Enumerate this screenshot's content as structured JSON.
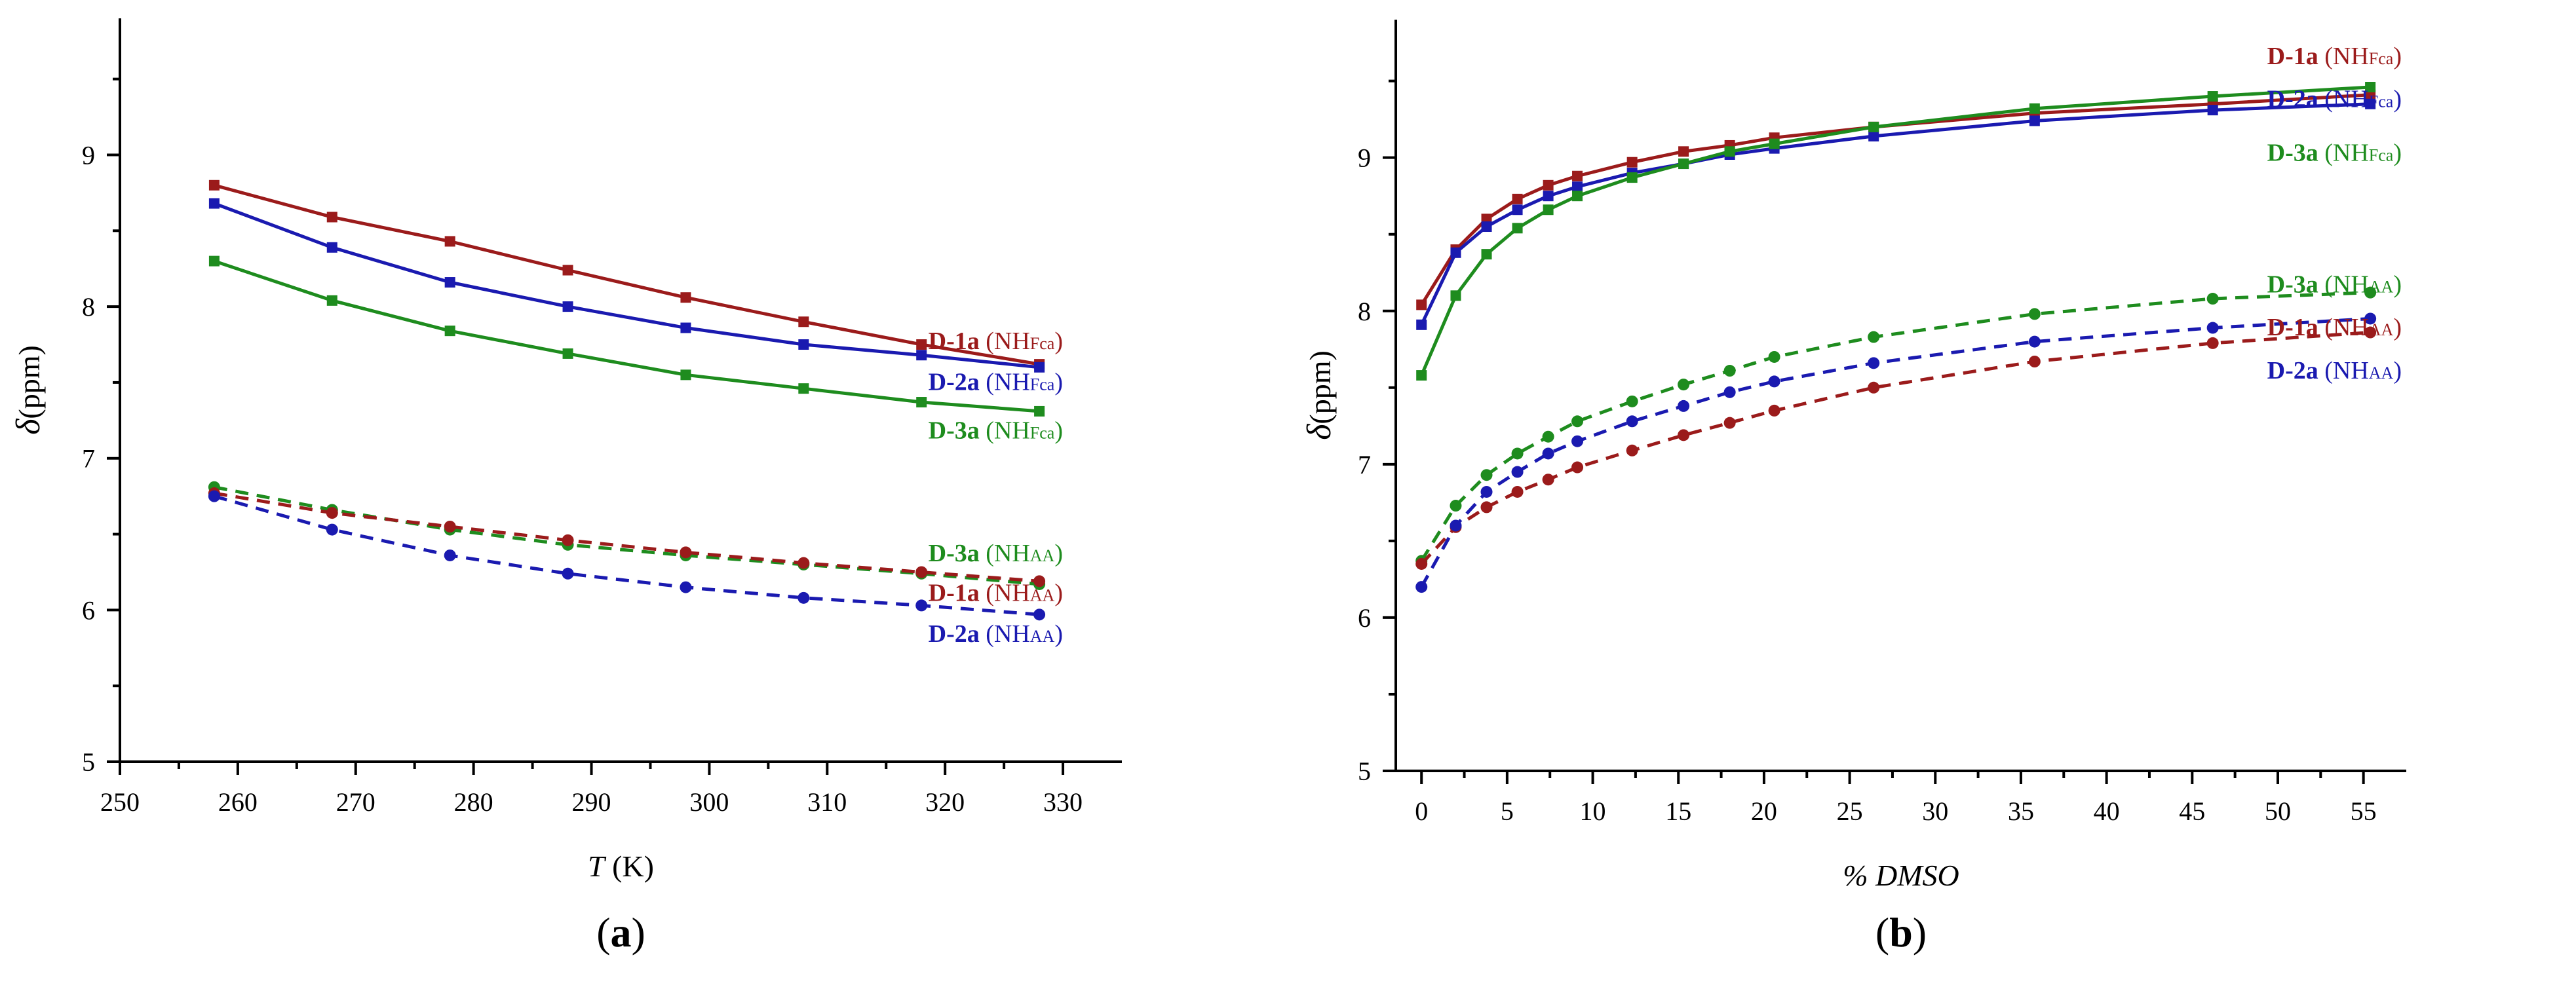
{
  "chart_data": [
    {
      "type": "line",
      "panel_label": "a",
      "xlabel_symbol": "T",
      "xlabel_unit": " (K)",
      "ylabel_symbol": "δ",
      "ylabel_unit": "(ppm)",
      "xlim": [
        250,
        335
      ],
      "ylim": [
        5,
        9.9
      ],
      "xticks": [
        250,
        260,
        270,
        280,
        290,
        300,
        310,
        320,
        330
      ],
      "yticks": [
        5,
        6,
        7,
        8,
        9
      ],
      "x": [
        258,
        268,
        278,
        288,
        298,
        308,
        318,
        328
      ],
      "series": [
        {
          "name": "D-1a (NHFca)",
          "compound": "D-1a",
          "group": "NH",
          "sub": "Fca",
          "color": "#9b1b1b",
          "dash": false,
          "marker": "square",
          "values": [
            8.8,
            8.59,
            8.43,
            8.24,
            8.06,
            7.9,
            7.75,
            7.62
          ]
        },
        {
          "name": "D-2a (NHFca)",
          "compound": "D-2a",
          "group": "NH",
          "sub": "Fca",
          "color": "#1a1ab0",
          "dash": false,
          "marker": "square",
          "values": [
            8.68,
            8.39,
            8.16,
            8.0,
            7.86,
            7.75,
            7.68,
            7.6
          ]
        },
        {
          "name": "D-3a (NHFca)",
          "compound": "D-3a",
          "group": "NH",
          "sub": "Fca",
          "color": "#1e8c1e",
          "dash": false,
          "marker": "square",
          "values": [
            8.3,
            8.04,
            7.84,
            7.69,
            7.55,
            7.46,
            7.37,
            7.31
          ]
        },
        {
          "name": "D-3a (NHAA)",
          "compound": "D-3a",
          "group": "NH",
          "sub": "AA",
          "color": "#1e8c1e",
          "dash": true,
          "marker": "circle",
          "values": [
            6.81,
            6.66,
            6.53,
            6.43,
            6.36,
            6.3,
            6.24,
            6.17
          ]
        },
        {
          "name": "D-1a (NHAA)",
          "compound": "D-1a",
          "group": "NH",
          "sub": "AA",
          "color": "#9b1b1b",
          "dash": true,
          "marker": "circle",
          "values": [
            6.77,
            6.64,
            6.55,
            6.46,
            6.38,
            6.31,
            6.25,
            6.19
          ]
        },
        {
          "name": "D-2a (NHAA)",
          "compound": "D-2a",
          "group": "NH",
          "sub": "AA",
          "color": "#1a1ab0",
          "dash": true,
          "marker": "circle",
          "values": [
            6.75,
            6.53,
            6.36,
            6.24,
            6.15,
            6.08,
            6.03,
            5.97
          ]
        }
      ],
      "legend": [
        {
          "compound": "D-1a",
          "group": "NH",
          "sub": "Fca",
          "color": "#9b1b1b",
          "at": 7.72
        },
        {
          "compound": "D-2a",
          "group": "NH",
          "sub": "Fca",
          "color": "#1a1ab0",
          "at": 7.45
        },
        {
          "compound": "D-3a",
          "group": "NH",
          "sub": "Fca",
          "color": "#1e8c1e",
          "at": 7.13
        },
        {
          "compound": "D-3a",
          "group": "NH",
          "sub": "AA",
          "color": "#1e8c1e",
          "at": 6.32
        },
        {
          "compound": "D-1a",
          "group": "NH",
          "sub": "AA",
          "color": "#9b1b1b",
          "at": 6.06
        },
        {
          "compound": "D-2a",
          "group": "NH",
          "sub": "AA",
          "color": "#1a1ab0",
          "at": 5.79
        }
      ]
    },
    {
      "type": "line",
      "panel_label": "b",
      "xlabel_symbol": "% DMSO",
      "xlabel_unit": "",
      "ylabel_symbol": "δ",
      "ylabel_unit": "(ppm)",
      "xlim": [
        -1.5,
        57.5
      ],
      "ylim": [
        5,
        9.9
      ],
      "xticks": [
        0,
        5,
        10,
        15,
        20,
        25,
        30,
        35,
        40,
        45,
        50,
        55
      ],
      "yticks": [
        5,
        6,
        7,
        8,
        9
      ],
      "x": [
        0,
        2,
        3.8,
        5.6,
        7.4,
        9.1,
        12.3,
        15.3,
        18.0,
        20.6,
        26.4,
        35.8,
        46.2,
        55.4
      ],
      "series": [
        {
          "name": "D-1a (NHFca)",
          "compound": "D-1a",
          "group": "NH",
          "sub": "Fca",
          "color": "#9b1b1b",
          "dash": false,
          "marker": "square",
          "values": [
            8.04,
            8.4,
            8.6,
            8.73,
            8.82,
            8.88,
            8.97,
            9.04,
            9.08,
            9.13,
            9.2,
            9.29,
            9.35,
            9.41
          ]
        },
        {
          "name": "D-2a (NHFca)",
          "compound": "D-2a",
          "group": "NH",
          "sub": "Fca",
          "color": "#1a1ab0",
          "dash": false,
          "marker": "square",
          "values": [
            7.91,
            8.38,
            8.55,
            8.66,
            8.75,
            8.81,
            8.9,
            8.96,
            9.02,
            9.06,
            9.14,
            9.24,
            9.31,
            9.35
          ]
        },
        {
          "name": "D-3a (NHFca)",
          "compound": "D-3a",
          "group": "NH",
          "sub": "Fca",
          "color": "#1e8c1e",
          "dash": false,
          "marker": "square",
          "values": [
            7.58,
            8.1,
            8.37,
            8.54,
            8.66,
            8.75,
            8.87,
            8.96,
            9.04,
            9.09,
            9.2,
            9.32,
            9.4,
            9.46
          ]
        },
        {
          "name": "D-3a (NHAA)",
          "compound": "D-3a",
          "group": "NH",
          "sub": "AA",
          "color": "#1e8c1e",
          "dash": true,
          "marker": "circle",
          "values": [
            6.37,
            6.73,
            6.93,
            7.07,
            7.18,
            7.28,
            7.41,
            7.52,
            7.61,
            7.7,
            7.83,
            7.98,
            8.08,
            8.12
          ]
        },
        {
          "name": "D-1a (NHAA)",
          "compound": "D-1a",
          "group": "NH",
          "sub": "AA",
          "color": "#9b1b1b",
          "dash": true,
          "marker": "circle",
          "values": [
            6.35,
            6.59,
            6.72,
            6.82,
            6.9,
            6.98,
            7.09,
            7.19,
            7.27,
            7.35,
            7.5,
            7.67,
            7.79,
            7.86
          ]
        },
        {
          "name": "D-2a (NHAA)",
          "compound": "D-2a",
          "group": "NH",
          "sub": "AA",
          "color": "#1a1ab0",
          "dash": true,
          "marker": "circle",
          "values": [
            6.2,
            6.6,
            6.82,
            6.95,
            7.07,
            7.15,
            7.28,
            7.38,
            7.47,
            7.54,
            7.66,
            7.8,
            7.89,
            7.95
          ]
        }
      ],
      "legend": [
        {
          "compound": "D-1a",
          "group": "NH",
          "sub": "Fca",
          "color": "#9b1b1b",
          "at": 9.61
        },
        {
          "compound": "D-2a",
          "group": "NH",
          "sub": "Fca",
          "color": "#1a1ab0",
          "at": 9.33
        },
        {
          "compound": "D-3a",
          "group": "NH",
          "sub": "Fca",
          "color": "#1e8c1e",
          "at": 8.98
        },
        {
          "compound": "D-3a",
          "group": "NH",
          "sub": "AA",
          "color": "#1e8c1e",
          "at": 8.12
        },
        {
          "compound": "D-1a",
          "group": "NH",
          "sub": "AA",
          "color": "#9b1b1b",
          "at": 7.84
        },
        {
          "compound": "D-2a",
          "group": "NH",
          "sub": "AA",
          "color": "#1a1ab0",
          "at": 7.56
        }
      ]
    }
  ]
}
